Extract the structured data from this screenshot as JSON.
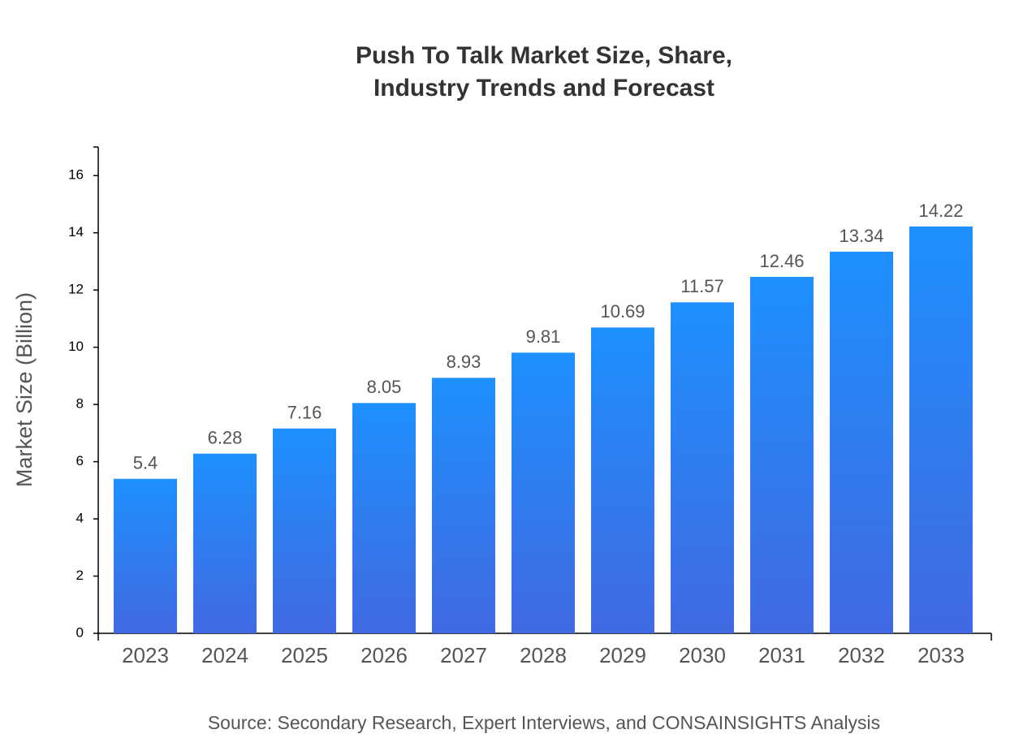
{
  "chart_data": {
    "type": "bar",
    "title": [
      "Push To Talk Market Size, Share,",
      "Industry Trends and Forecast"
    ],
    "y_label": "Market Size (Billion)",
    "source": "Source: Secondary Research, Expert Interviews, and CONSAINSIGHTS Analysis",
    "categories": [
      "2023",
      "2024",
      "2025",
      "2026",
      "2027",
      "2028",
      "2029",
      "2030",
      "2031",
      "2032",
      "2033"
    ],
    "values": [
      5.4,
      6.28,
      7.16,
      8.05,
      8.93,
      9.81,
      10.69,
      11.57,
      12.46,
      13.34,
      14.22
    ],
    "gradient": [
      "#1e90ff",
      "#4169e1"
    ],
    "ylim": [
      0,
      17
    ],
    "yticks": [
      0,
      2,
      4,
      6,
      8,
      10,
      12,
      14,
      16
    ],
    "grid": false
  }
}
